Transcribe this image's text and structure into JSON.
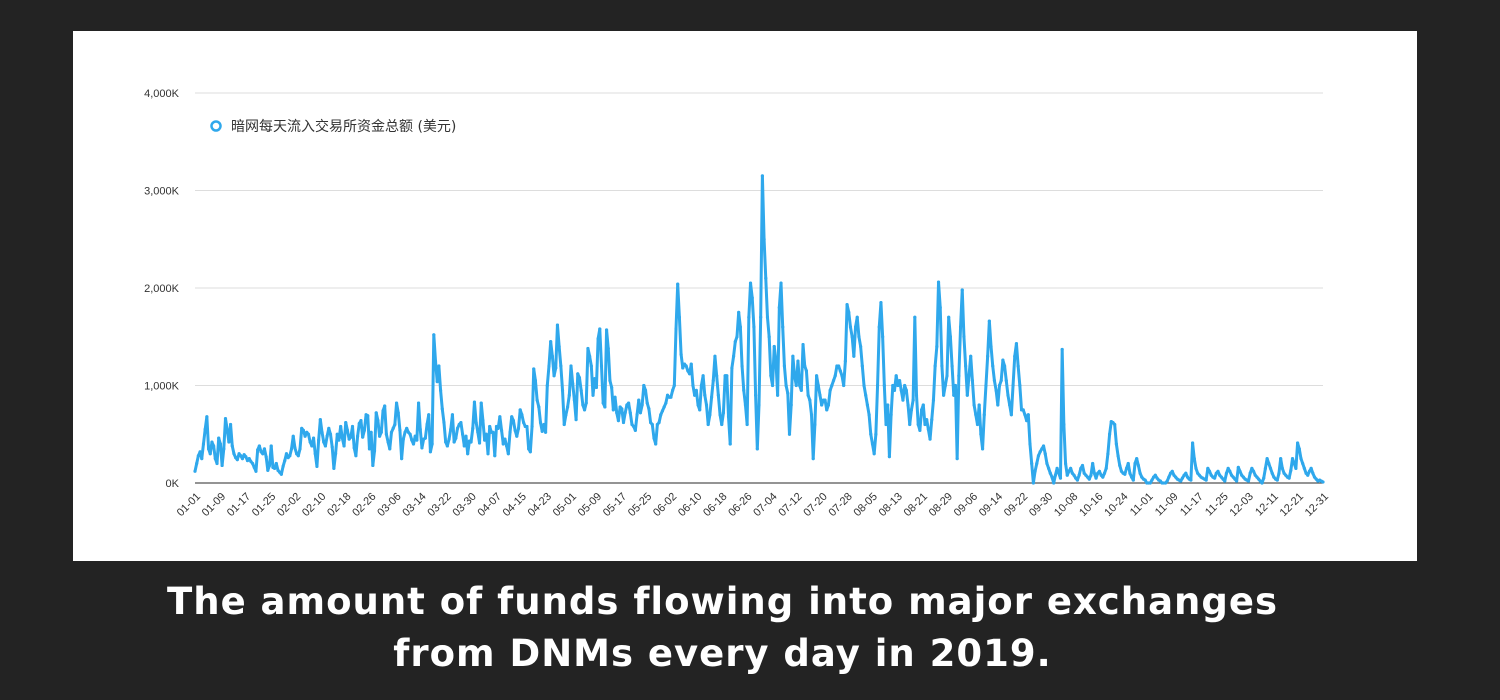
{
  "caption": {
    "line1": "The amount of funds flowing into major exchanges",
    "line2": "from DNMs every day in 2019."
  },
  "chart_data": {
    "type": "line",
    "title": "",
    "xlabel": "",
    "ylabel": "",
    "ylim": [
      0,
      4000
    ],
    "y_ticks": [
      0,
      1000,
      2000,
      3000,
      4000
    ],
    "y_tick_labels": [
      "0K",
      "1,000K",
      "2,000K",
      "3,000K",
      "4,000K"
    ],
    "x_tick_labels": [
      "01-01",
      "01-09",
      "01-17",
      "01-25",
      "02-02",
      "02-10",
      "02-18",
      "02-26",
      "03-06",
      "03-14",
      "03-22",
      "03-30",
      "04-07",
      "04-15",
      "04-23",
      "05-01",
      "05-09",
      "05-17",
      "05-25",
      "06-02",
      "06-10",
      "06-18",
      "06-26",
      "07-04",
      "07-12",
      "07-20",
      "07-28",
      "08-05",
      "08-13",
      "08-21",
      "08-29",
      "09-06",
      "09-14",
      "09-22",
      "09-30",
      "10-08",
      "10-16",
      "10-24",
      "11-01",
      "11-09",
      "11-17",
      "11-25",
      "12-03",
      "12-11",
      "12-21",
      "12-31"
    ],
    "legend": {
      "position": "top-left"
    },
    "grid": true,
    "colors": {
      "line": "#2fa8ec",
      "grid": "#dddddd",
      "background": "#ffffff"
    },
    "series": [
      {
        "name": "暗网每天流入交易所资金总额 (美元)",
        "x_start": "01-01",
        "x_end": "12-31",
        "values": [
          120,
          200,
          280,
          320,
          250,
          400,
          550,
          680,
          350,
          300,
          420,
          380,
          250,
          200,
          460,
          400,
          180,
          350,
          660,
          550,
          420,
          600,
          380,
          300,
          260,
          240,
          300,
          280,
          250,
          290,
          270,
          230,
          250,
          220,
          200,
          160,
          120,
          340,
          380,
          320,
          300,
          350,
          270,
          130,
          180,
          380,
          160,
          150,
          200,
          130,
          110,
          90,
          170,
          230,
          300,
          260,
          280,
          350,
          480,
          360,
          300,
          280,
          350,
          560,
          540,
          480,
          520,
          500,
          420,
          380,
          460,
          300,
          170,
          440,
          650,
          520,
          420,
          380,
          480,
          560,
          500,
          370,
          150,
          300,
          500,
          440,
          580,
          460,
          380,
          620,
          540,
          450,
          470,
          580,
          360,
          280,
          480,
          610,
          640,
          470,
          540,
          700,
          690,
          350,
          520,
          180,
          330,
          720,
          640,
          480,
          520,
          740,
          790,
          500,
          420,
          350,
          520,
          560,
          600,
          820,
          720,
          540,
          250,
          450,
          520,
          560,
          520,
          500,
          440,
          400,
          480,
          440,
          820,
          550,
          360,
          450,
          460,
          600,
          700,
          320,
          400,
          1520,
          1250,
          1040,
          1200,
          950,
          760,
          620,
          420,
          380,
          450,
          550,
          700,
          420,
          460,
          560,
          600,
          620,
          500,
          380,
          480,
          300,
          430,
          420,
          560,
          830,
          620,
          520,
          410,
          820,
          640,
          440,
          500,
          300,
          580,
          520,
          520,
          280,
          580,
          560,
          680,
          540,
          400,
          450,
          380,
          300,
          520,
          680,
          640,
          540,
          480,
          560,
          750,
          700,
          620,
          580,
          580,
          350,
          320,
          580,
          1170,
          1050,
          850,
          780,
          620,
          530,
          600,
          520,
          1000,
          1200,
          1450,
          1300,
          1100,
          1180,
          1620,
          1400,
          1200,
          950,
          600,
          700,
          780,
          900,
          1200,
          1020,
          850,
          650,
          1120,
          1080,
          950,
          800,
          750,
          820,
          1380,
          1300,
          1200,
          900,
          1070,
          980,
          1480,
          1580,
          1200,
          820,
          780,
          1570,
          1380,
          1050,
          980,
          750,
          880,
          720,
          640,
          780,
          760,
          620,
          720,
          800,
          820,
          720,
          600,
          580,
          540,
          700,
          850,
          720,
          800,
          1000,
          950,
          820,
          760,
          620,
          600,
          460,
          400,
          600,
          620,
          700,
          740,
          780,
          820,
          900,
          880,
          880,
          950,
          1000,
          1580,
          2040,
          1700,
          1320,
          1180,
          1220,
          1200,
          1150,
          1120,
          1220,
          1000,
          900,
          950,
          800,
          750,
          1000,
          1100,
          900,
          800,
          600,
          700,
          880,
          1050,
          1300,
          1100,
          900,
          700,
          600,
          720,
          1100,
          1100,
          680,
          400,
          1180,
          1300,
          1450,
          1500,
          1750,
          1600,
          1200,
          950,
          800,
          600,
          1700,
          2050,
          1900,
          1600,
          900,
          350,
          800,
          1700,
          3150,
          2500,
          2100,
          1700,
          1500,
          1100,
          1000,
          1400,
          1250,
          900,
          1800,
          2050,
          1600,
          1200,
          1000,
          920,
          500,
          800,
          1300,
          1100,
          1000,
          1250,
          1000,
          950,
          1420,
          1200,
          1150,
          900,
          850,
          700,
          250,
          600,
          1100,
          1000,
          900,
          800,
          850,
          850,
          750,
          800,
          950,
          1000,
          1050,
          1100,
          1200,
          1200,
          1150,
          1100,
          1000,
          1250,
          1830,
          1750,
          1600,
          1500,
          1300,
          1600,
          1700,
          1500,
          1400,
          1200,
          1000,
          900,
          800,
          700,
          500,
          400,
          300,
          500,
          1000,
          1600,
          1850,
          1500,
          1000,
          600,
          800,
          270,
          700,
          1000,
          950,
          1100,
          1000,
          1050,
          950,
          850,
          1000,
          950,
          800,
          600,
          750,
          850,
          1700,
          900,
          600,
          540,
          750,
          800,
          600,
          650,
          550,
          450,
          650,
          850,
          1200,
          1400,
          2060,
          1800,
          1200,
          900,
          1000,
          1100,
          1700,
          1500,
          1200,
          900,
          1000,
          250,
          1100,
          1600,
          1980,
          1500,
          1200,
          900,
          1100,
          1300,
          1050,
          800,
          700,
          600,
          800,
          500,
          350,
          700,
          1000,
          1300,
          1660,
          1400,
          1200,
          1050,
          950,
          800,
          1000,
          1050,
          1260,
          1200,
          1050,
          900,
          800,
          700,
          1000,
          1300,
          1430,
          1200,
          1000,
          750,
          750,
          700,
          640,
          700,
          400,
          200,
          0,
          120,
          200,
          280,
          320,
          350,
          380,
          300,
          200,
          150,
          100,
          60,
          0,
          80,
          150,
          100,
          50,
          1370,
          600,
          200,
          80,
          120,
          150,
          100,
          80,
          50,
          30,
          80,
          150,
          180,
          100,
          80,
          60,
          40,
          80,
          200,
          100,
          50,
          100,
          120,
          80,
          60,
          100,
          150,
          300,
          500,
          630,
          620,
          600,
          400,
          280,
          180,
          120,
          100,
          90,
          150,
          200,
          100,
          60,
          30,
          200,
          250,
          180,
          100,
          60,
          40,
          30,
          0,
          0,
          0,
          30,
          60,
          80,
          50,
          30,
          20,
          0,
          0,
          0,
          20,
          60,
          100,
          120,
          80,
          60,
          40,
          30,
          20,
          50,
          80,
          100,
          60,
          40,
          30,
          410,
          250,
          150,
          100,
          80,
          60,
          50,
          40,
          30,
          150,
          120,
          80,
          60,
          50,
          100,
          120,
          80,
          60,
          40,
          20,
          100,
          150,
          120,
          80,
          60,
          40,
          20,
          160,
          120,
          80,
          60,
          40,
          30,
          20,
          100,
          150,
          120,
          80,
          60,
          40,
          20,
          0,
          50,
          150,
          250,
          200,
          150,
          100,
          60,
          40,
          30,
          100,
          250,
          150,
          100,
          80,
          60,
          50,
          130,
          250,
          200,
          150,
          410,
          350,
          250,
          200,
          150,
          100,
          80,
          120,
          150,
          100,
          60,
          40,
          20,
          30,
          20,
          10
        ]
      }
    ]
  }
}
